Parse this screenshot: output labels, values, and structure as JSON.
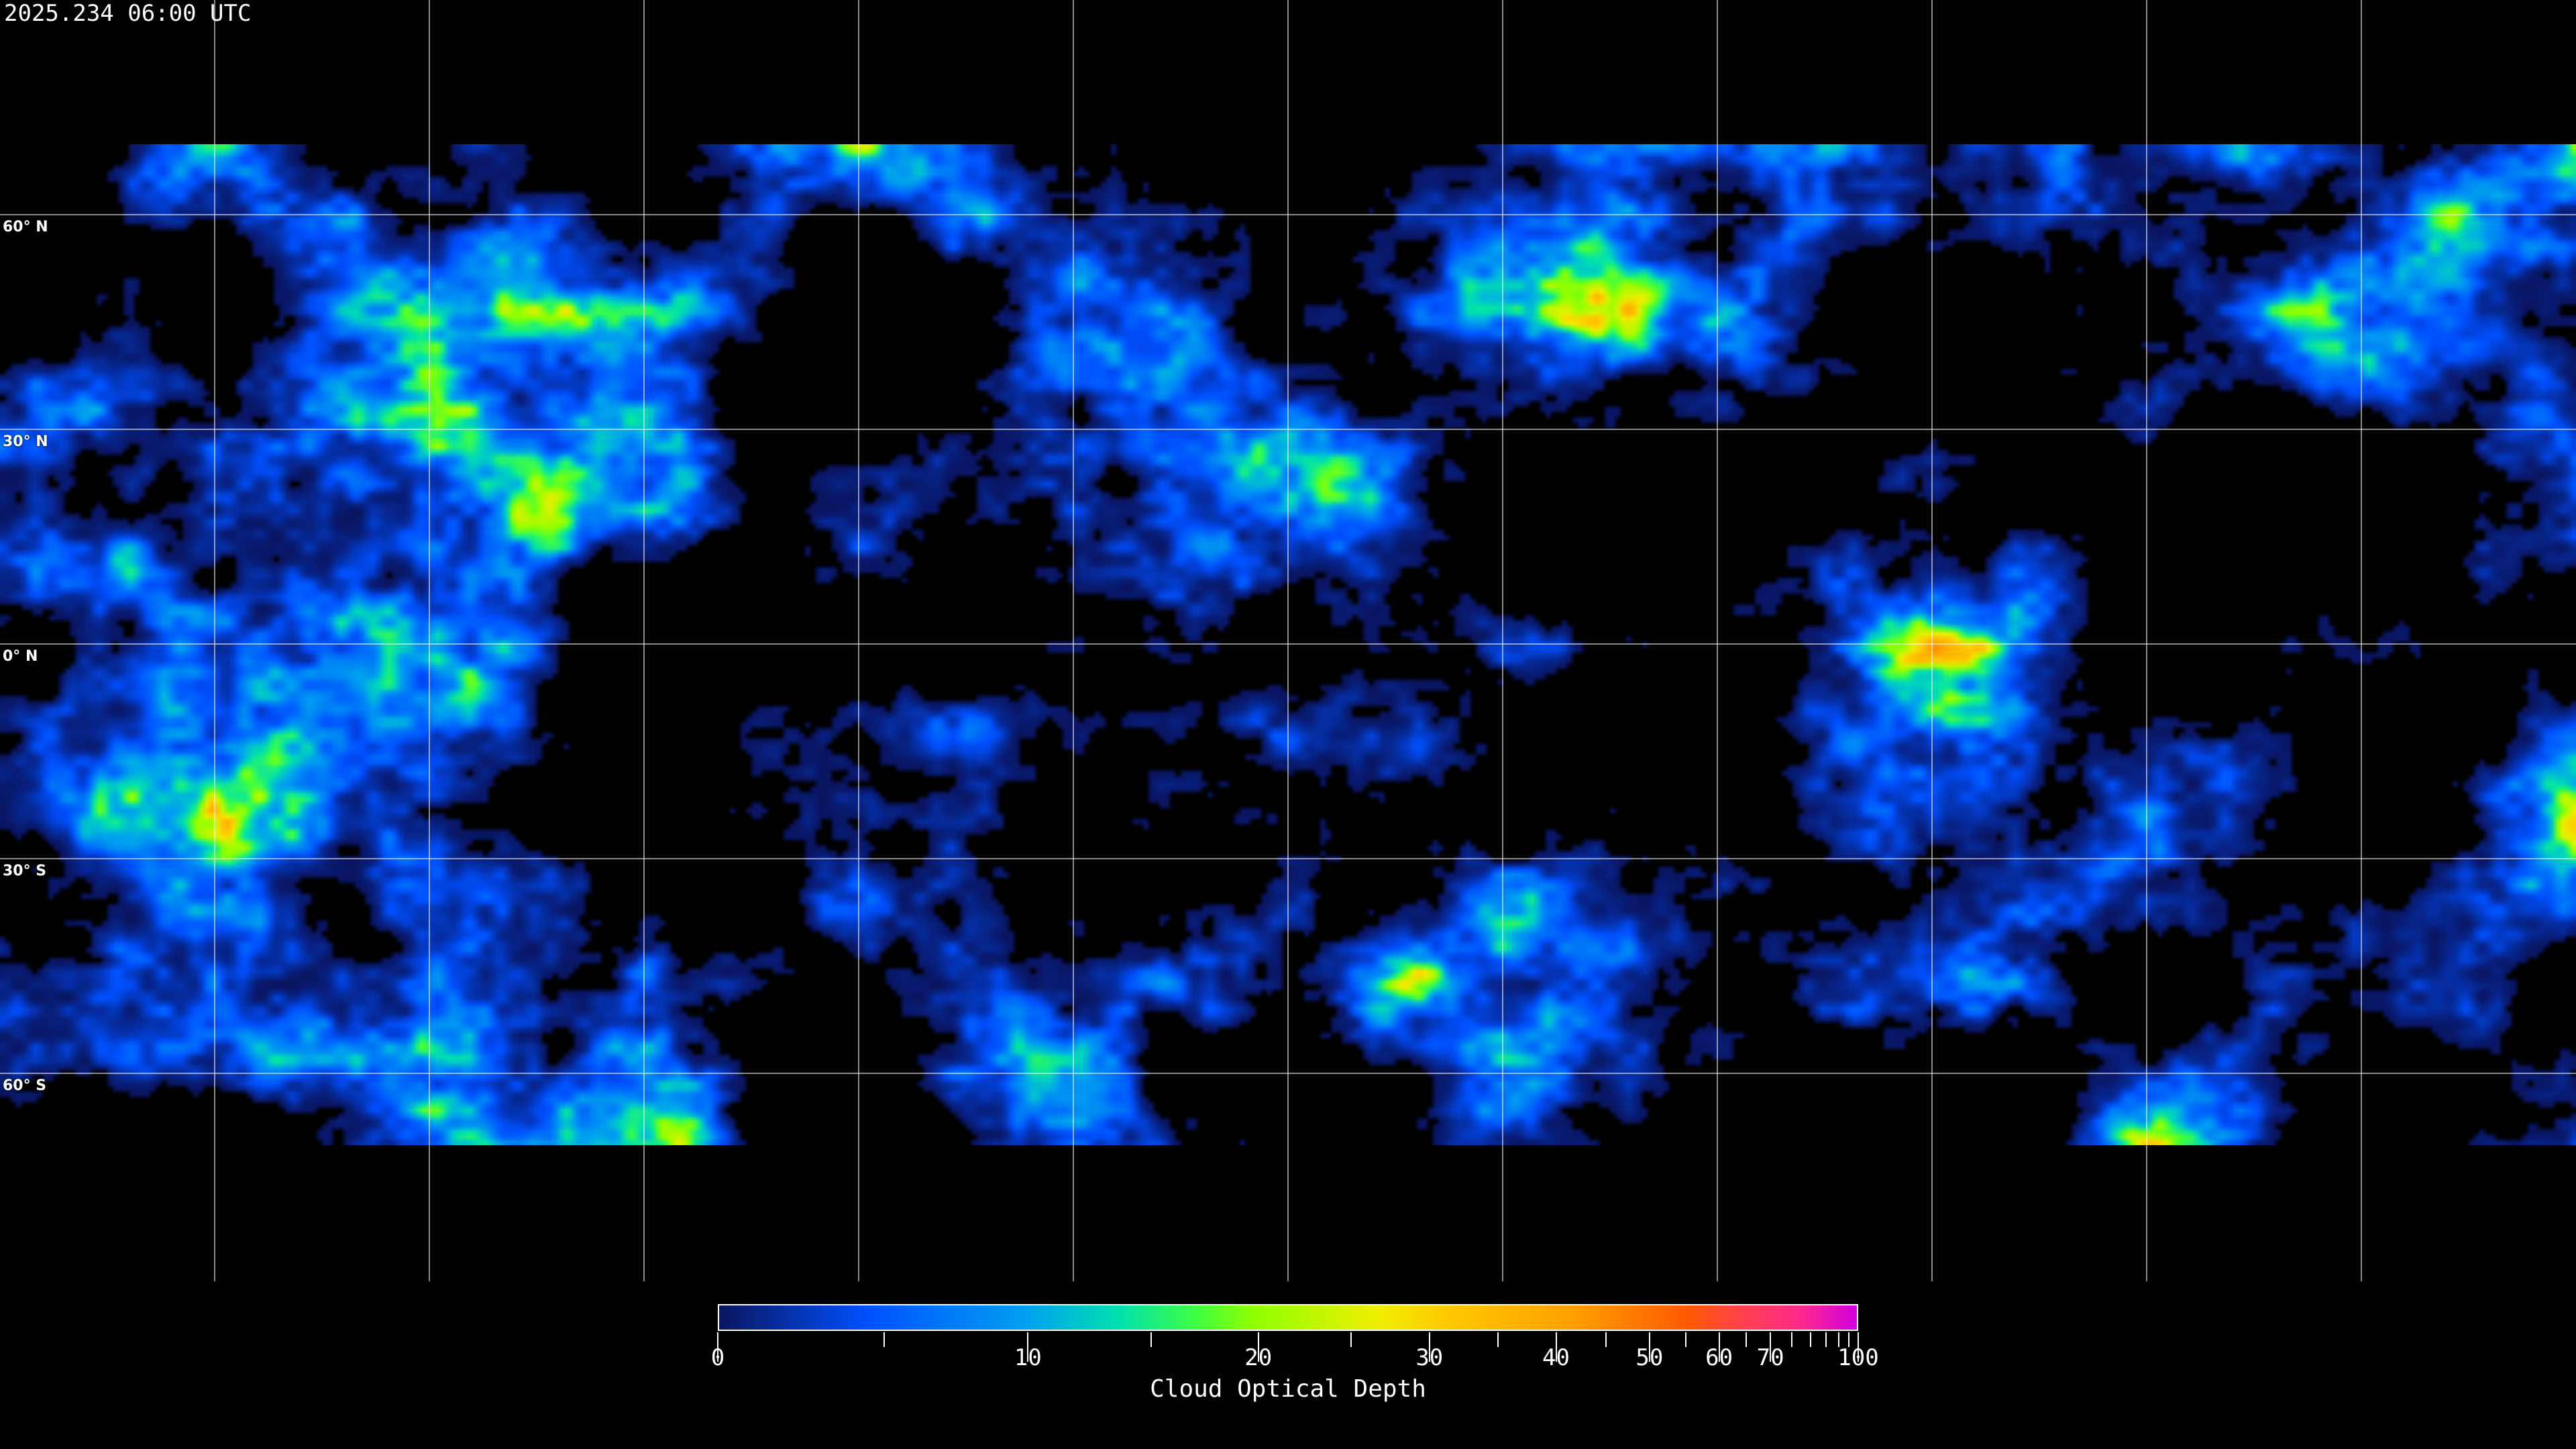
{
  "title": "2025.234 06:00 UTC",
  "map": {
    "latitude_labels": [
      "60° N",
      "30° N",
      "0° N",
      "30° S",
      "60° S"
    ]
  },
  "colorbar": {
    "title": "Cloud Optical Depth",
    "tick_labels": [
      "0",
      "10",
      "20",
      "30",
      "40",
      "50",
      "60",
      "70",
      "100"
    ],
    "range": [
      0,
      100
    ],
    "colors": [
      "#0a1560",
      "#0050ff",
      "#00a0f0",
      "#00e0b0",
      "#40ff40",
      "#90ff00",
      "#f0ee00",
      "#ffc800",
      "#ffa000",
      "#ff5a00",
      "#ff4050",
      "#ff2a8a",
      "#d000e0"
    ]
  }
}
